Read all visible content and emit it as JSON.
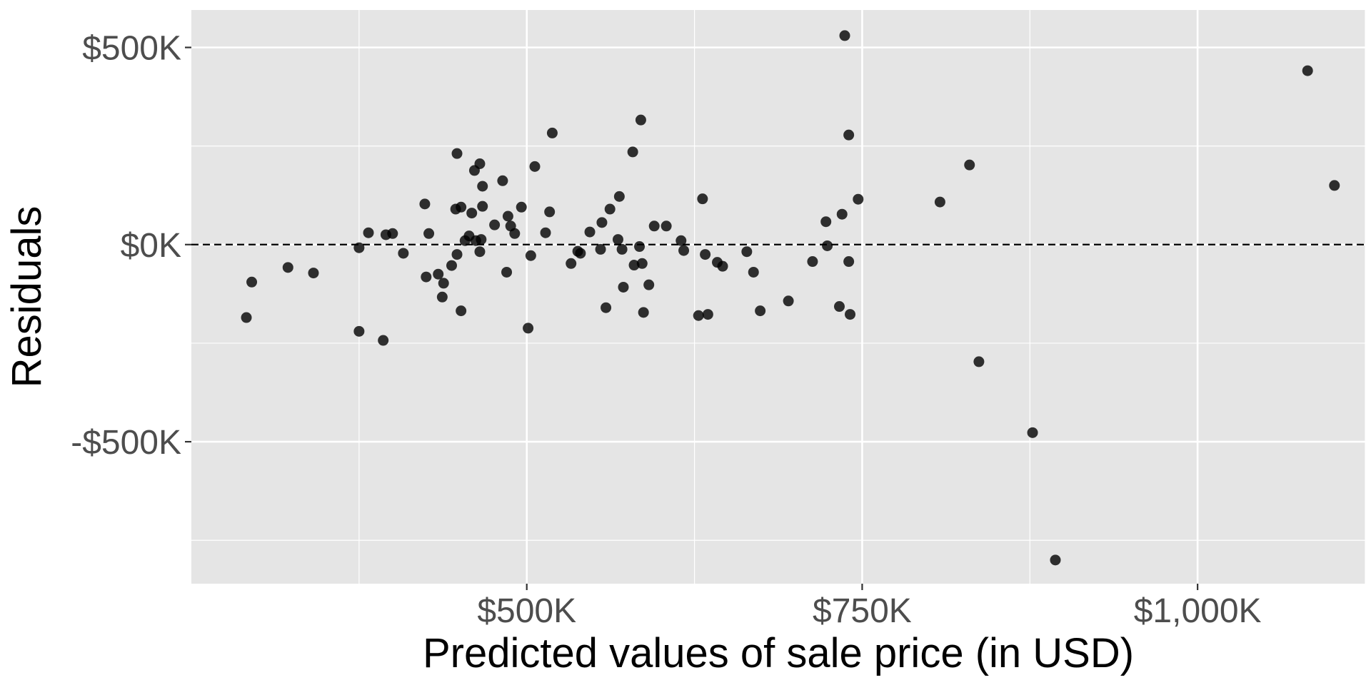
{
  "chart_data": {
    "type": "scatter",
    "title": "",
    "xlabel": "Predicted values of sale price (in USD)",
    "ylabel": "Residuals",
    "xlim": [
      250000,
      1125000
    ],
    "ylim": [
      -860000,
      595000
    ],
    "x_ticks": [
      {
        "value": 500000,
        "label": "$500K"
      },
      {
        "value": 750000,
        "label": "$750K"
      },
      {
        "value": 1000000,
        "label": "$1,000K"
      }
    ],
    "x_minor_gridlines": [
      375000,
      625000,
      875000,
      1125000
    ],
    "y_ticks": [
      {
        "value": 500000,
        "label": "$500K"
      },
      {
        "value": 0,
        "label": "$0K"
      },
      {
        "value": -500000,
        "label": "-$500K"
      }
    ],
    "y_minor_gridlines": [
      -750000,
      -250000,
      250000
    ],
    "reference_line": {
      "y": 0,
      "style": "dashed"
    },
    "grid": true,
    "legend": "none",
    "colors": {
      "panel": "#e5e5e5",
      "grid": "#ffffff",
      "point": "#000000",
      "point_opacity": 0.8
    },
    "points": [
      {
        "x": 291000,
        "y": -185000
      },
      {
        "x": 295000,
        "y": -95000
      },
      {
        "x": 322000,
        "y": -58000
      },
      {
        "x": 341000,
        "y": -72000
      },
      {
        "x": 375000,
        "y": -220000
      },
      {
        "x": 375000,
        "y": -8000
      },
      {
        "x": 382000,
        "y": 30000
      },
      {
        "x": 393000,
        "y": -243000
      },
      {
        "x": 395000,
        "y": 25000
      },
      {
        "x": 400000,
        "y": 28000
      },
      {
        "x": 408000,
        "y": -22000
      },
      {
        "x": 424000,
        "y": 103000
      },
      {
        "x": 425000,
        "y": -82000
      },
      {
        "x": 427000,
        "y": 28000
      },
      {
        "x": 434000,
        "y": -75000
      },
      {
        "x": 437000,
        "y": -133000
      },
      {
        "x": 438000,
        "y": -98000
      },
      {
        "x": 444000,
        "y": -53000
      },
      {
        "x": 447000,
        "y": 90000
      },
      {
        "x": 448000,
        "y": -25000
      },
      {
        "x": 448000,
        "y": 231000
      },
      {
        "x": 451000,
        "y": 95000
      },
      {
        "x": 451000,
        "y": -168000
      },
      {
        "x": 454000,
        "y": 10000
      },
      {
        "x": 457000,
        "y": 22000
      },
      {
        "x": 459000,
        "y": 80000
      },
      {
        "x": 461000,
        "y": 188000
      },
      {
        "x": 462000,
        "y": 10000
      },
      {
        "x": 465000,
        "y": -18000
      },
      {
        "x": 465000,
        "y": 205000
      },
      {
        "x": 466000,
        "y": 13000
      },
      {
        "x": 467000,
        "y": 97000
      },
      {
        "x": 467000,
        "y": 148000
      },
      {
        "x": 476000,
        "y": 50000
      },
      {
        "x": 482000,
        "y": 162000
      },
      {
        "x": 485000,
        "y": -70000
      },
      {
        "x": 486000,
        "y": 72000
      },
      {
        "x": 488000,
        "y": 47000
      },
      {
        "x": 491000,
        "y": 28000
      },
      {
        "x": 496000,
        "y": 95000
      },
      {
        "x": 501000,
        "y": -212000
      },
      {
        "x": 503000,
        "y": -28000
      },
      {
        "x": 506000,
        "y": 198000
      },
      {
        "x": 514000,
        "y": 30000
      },
      {
        "x": 517000,
        "y": 83000
      },
      {
        "x": 519000,
        "y": 283000
      },
      {
        "x": 533000,
        "y": -48000
      },
      {
        "x": 538000,
        "y": -17000
      },
      {
        "x": 540000,
        "y": -22000
      },
      {
        "x": 547000,
        "y": 32000
      },
      {
        "x": 555000,
        "y": -12000
      },
      {
        "x": 556000,
        "y": 56000
      },
      {
        "x": 559000,
        "y": -160000
      },
      {
        "x": 562000,
        "y": 90000
      },
      {
        "x": 568000,
        "y": 13000
      },
      {
        "x": 569000,
        "y": 122000
      },
      {
        "x": 571000,
        "y": -12000
      },
      {
        "x": 572000,
        "y": -108000
      },
      {
        "x": 579000,
        "y": 235000
      },
      {
        "x": 580000,
        "y": -52000
      },
      {
        "x": 584000,
        "y": -5000
      },
      {
        "x": 585000,
        "y": 316000
      },
      {
        "x": 586000,
        "y": -48000
      },
      {
        "x": 587000,
        "y": -172000
      },
      {
        "x": 591000,
        "y": -102000
      },
      {
        "x": 595000,
        "y": 47000
      },
      {
        "x": 604000,
        "y": 47000
      },
      {
        "x": 615000,
        "y": 10000
      },
      {
        "x": 617000,
        "y": -15000
      },
      {
        "x": 628000,
        "y": -180000
      },
      {
        "x": 631000,
        "y": 116000
      },
      {
        "x": 633000,
        "y": -25000
      },
      {
        "x": 635000,
        "y": -177000
      },
      {
        "x": 642000,
        "y": -45000
      },
      {
        "x": 646000,
        "y": -55000
      },
      {
        "x": 664000,
        "y": -18000
      },
      {
        "x": 669000,
        "y": -70000
      },
      {
        "x": 674000,
        "y": -168000
      },
      {
        "x": 695000,
        "y": -143000
      },
      {
        "x": 713000,
        "y": -43000
      },
      {
        "x": 723000,
        "y": 58000
      },
      {
        "x": 724000,
        "y": -3000
      },
      {
        "x": 733000,
        "y": -157000
      },
      {
        "x": 735000,
        "y": 77000
      },
      {
        "x": 737000,
        "y": 530000
      },
      {
        "x": 740000,
        "y": -43000
      },
      {
        "x": 740000,
        "y": 278000
      },
      {
        "x": 741000,
        "y": -177000
      },
      {
        "x": 747000,
        "y": 115000
      },
      {
        "x": 808000,
        "y": 108000
      },
      {
        "x": 830000,
        "y": 202000
      },
      {
        "x": 837000,
        "y": -297000
      },
      {
        "x": 877000,
        "y": -477000
      },
      {
        "x": 894000,
        "y": -800000
      },
      {
        "x": 1082000,
        "y": 441000
      },
      {
        "x": 1102000,
        "y": 150000
      }
    ]
  }
}
